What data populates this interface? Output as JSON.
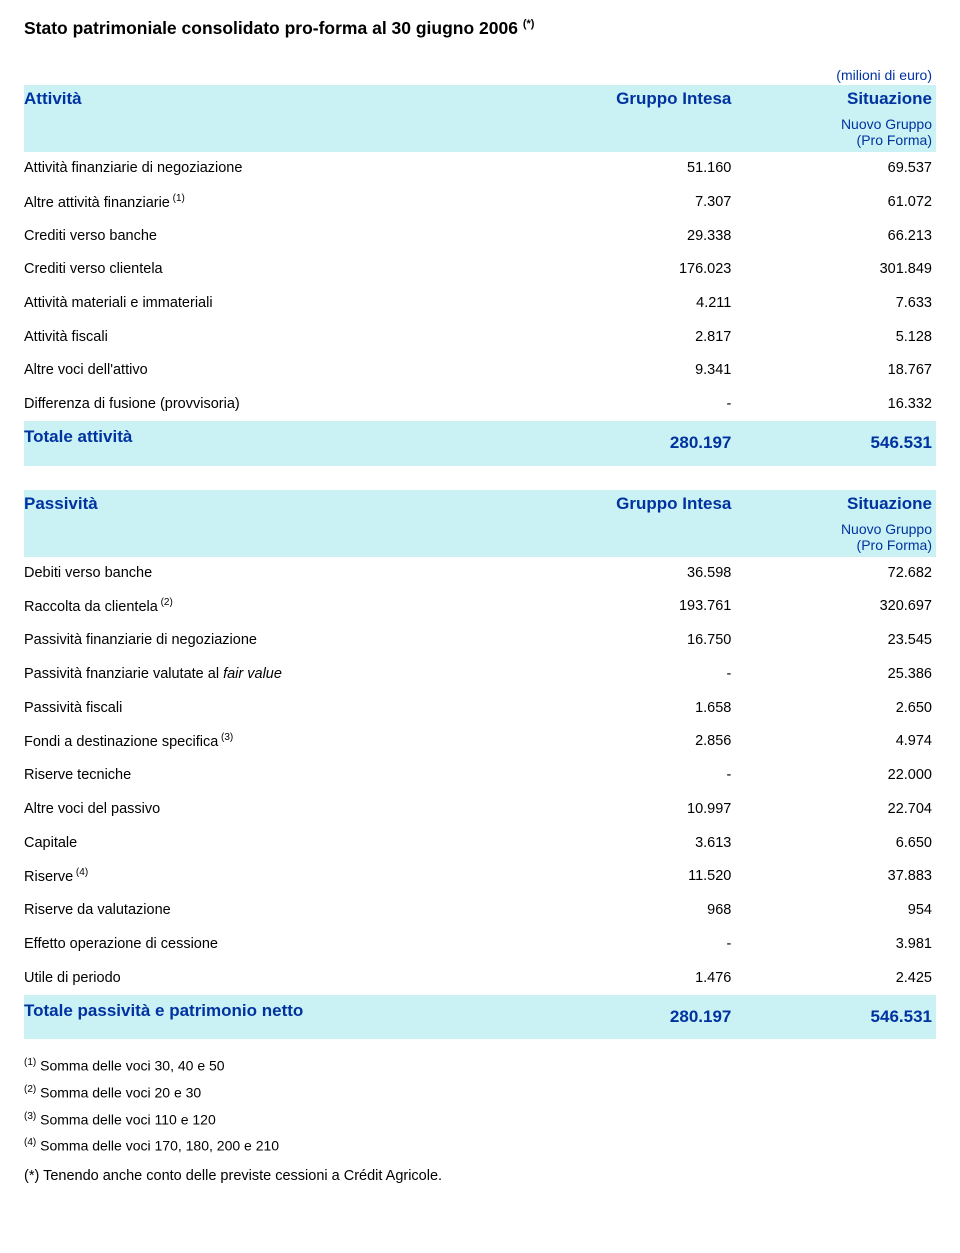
{
  "colors": {
    "band_bg": "#caf2f4",
    "accent_text": "#0033a0",
    "body_text": "#000000",
    "page_bg": "#ffffff"
  },
  "typography": {
    "title_fontsize_pt": 13,
    "header_fontsize_pt": 13,
    "body_fontsize_pt": 11,
    "footnote_fontsize_pt": 10.5,
    "font_family": "Arial"
  },
  "title": "Stato patrimoniale consolidato pro-forma al 30 giugno 2006",
  "title_sup": "(*)",
  "unit": "(milioni di euro)",
  "columns": {
    "c1": "Gruppo Intesa",
    "c2": "Situazione",
    "c2_sub1": "Nuovo Gruppo",
    "c2_sub2": "(Pro Forma)"
  },
  "attivita": {
    "header": "Attività",
    "rows": [
      {
        "label": "Attività finanziarie di negoziazione",
        "sup": "",
        "v1": "51.160",
        "v2": "69.537"
      },
      {
        "label": "Altre attività finanziarie",
        "sup": "(1)",
        "v1": "7.307",
        "v2": "61.072"
      },
      {
        "label": "Crediti verso banche",
        "sup": "",
        "v1": "29.338",
        "v2": "66.213"
      },
      {
        "label": "Crediti verso clientela",
        "sup": "",
        "v1": "176.023",
        "v2": "301.849"
      },
      {
        "label": "Attività materiali e immateriali",
        "sup": "",
        "v1": "4.211",
        "v2": "7.633"
      },
      {
        "label": "Attività fiscali",
        "sup": "",
        "v1": "2.817",
        "v2": "5.128"
      },
      {
        "label": "Altre voci dell'attivo",
        "sup": "",
        "v1": "9.341",
        "v2": "18.767"
      },
      {
        "label": "Differenza di fusione (provvisoria)",
        "sup": "",
        "v1": "-",
        "v2": "16.332"
      }
    ],
    "total": {
      "label": "Totale attività",
      "v1": "280.197",
      "v2": "546.531"
    }
  },
  "passivita": {
    "header": "Passività",
    "rows": [
      {
        "label": "Debiti verso banche",
        "sup": "",
        "v1": "36.598",
        "v2": "72.682"
      },
      {
        "label": "Raccolta da clientela",
        "sup": "(2)",
        "v1": "193.761",
        "v2": "320.697"
      },
      {
        "label": "Passività finanziarie di negoziazione",
        "sup": "",
        "v1": "16.750",
        "v2": "23.545"
      },
      {
        "label_html": "Passività fnanziarie valutate al <span class='ital'>fair value</span>",
        "label": "Passività fnanziarie valutate al fair value",
        "sup": "",
        "v1": "-",
        "v2": "25.386"
      },
      {
        "label": "Passività fiscali",
        "sup": "",
        "v1": "1.658",
        "v2": "2.650"
      },
      {
        "label": "Fondi a destinazione specifica",
        "sup": "(3)",
        "v1": "2.856",
        "v2": "4.974"
      },
      {
        "label": "Riserve tecniche",
        "sup": "",
        "v1": "-",
        "v2": "22.000"
      },
      {
        "label": "Altre voci del passivo",
        "sup": "",
        "v1": "10.997",
        "v2": "22.704"
      },
      {
        "label": "Capitale",
        "sup": "",
        "v1": "3.613",
        "v2": "6.650"
      },
      {
        "label": "Riserve",
        "sup": "(4)",
        "v1": "11.520",
        "v2": "37.883"
      },
      {
        "label": "Riserve da valutazione",
        "sup": "",
        "v1": "968",
        "v2": "954"
      },
      {
        "label": "Effetto operazione di cessione",
        "sup": "",
        "v1": "-",
        "v2": "3.981"
      },
      {
        "label": "Utile di periodo",
        "sup": "",
        "v1": "1.476",
        "v2": "2.425"
      }
    ],
    "total": {
      "label": "Totale passività e patrimonio netto",
      "v1": "280.197",
      "v2": "546.531"
    }
  },
  "footnotes": [
    {
      "sup": "(1)",
      "text": "Somma delle voci 30, 40 e 50"
    },
    {
      "sup": "(2)",
      "text": "Somma delle voci 20 e 30"
    },
    {
      "sup": "(3)",
      "text": "Somma delle voci 110 e 120"
    },
    {
      "sup": "(4)",
      "text": "Somma delle voci 170, 180,  200 e 210"
    }
  ],
  "bottom_note": "(*) Tenendo anche conto delle previste cessioni a Crédit Agricole."
}
